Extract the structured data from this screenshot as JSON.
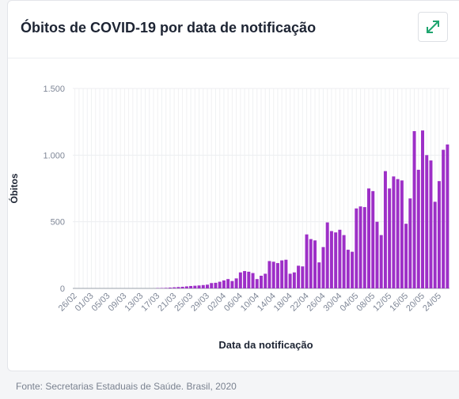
{
  "chart_data": {
    "type": "bar",
    "title": "Óbitos de COVID-19 por data de notificação",
    "x_label": "Data da notificação",
    "y_label": "Óbitos",
    "source": "Fonte: Secretarias Estaduais de Saúde. Brasil, 2020",
    "color": "#9d2fc7",
    "categories": [
      "26/02",
      null,
      null,
      null,
      "01/03",
      null,
      null,
      null,
      "05/03",
      null,
      null,
      null,
      "09/03",
      null,
      null,
      null,
      "13/03",
      null,
      null,
      null,
      "17/03",
      null,
      null,
      null,
      "21/03",
      null,
      null,
      null,
      "25/03",
      null,
      null,
      null,
      "29/03",
      null,
      null,
      null,
      "02/04",
      null,
      null,
      null,
      "06/04",
      null,
      null,
      null,
      "10/04",
      null,
      null,
      null,
      "14/04",
      null,
      null,
      null,
      "18/04",
      null,
      null,
      null,
      "22/04",
      null,
      null,
      null,
      "26/04",
      null,
      null,
      null,
      "30/04",
      null,
      null,
      null,
      "04/05",
      null,
      null,
      null,
      "08/05",
      null,
      null,
      null,
      "12/05",
      null,
      null,
      null,
      "16/05",
      null,
      null,
      null,
      "20/05",
      null,
      null,
      null,
      "24/05",
      null,
      null
    ],
    "values": [
      0,
      0,
      0,
      0,
      0,
      0,
      0,
      0,
      0,
      0,
      0,
      0,
      0,
      0,
      0,
      0,
      0,
      0,
      0,
      0,
      2,
      3,
      4,
      6,
      8,
      10,
      12,
      15,
      18,
      20,
      22,
      25,
      28,
      40,
      42,
      50,
      60,
      70,
      55,
      75,
      120,
      130,
      125,
      115,
      70,
      95,
      110,
      205,
      200,
      190,
      210,
      215,
      110,
      120,
      170,
      165,
      405,
      370,
      360,
      195,
      310,
      495,
      430,
      420,
      440,
      400,
      290,
      275,
      600,
      615,
      610,
      750,
      730,
      500,
      400,
      880,
      750,
      840,
      820,
      810,
      485,
      675,
      1180,
      890,
      1185,
      1000,
      960,
      650,
      805,
      1040,
      1080
    ],
    "ylim": [
      0,
      1500
    ],
    "yticks": [
      0,
      500,
      {
        "value": 1000,
        "label": "1.000"
      },
      {
        "value": 1500,
        "label": "1.500"
      }
    ],
    "grid": true
  }
}
